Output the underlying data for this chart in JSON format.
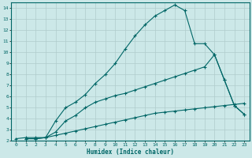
{
  "xlabel": "Humidex (Indice chaleur)",
  "bg_color": "#cce8e8",
  "grid_color": "#b0cccc",
  "line_color": "#006666",
  "xlim": [
    -0.5,
    23.5
  ],
  "ylim": [
    2,
    14.5
  ],
  "xticks": [
    0,
    1,
    2,
    3,
    4,
    5,
    6,
    7,
    8,
    9,
    10,
    11,
    12,
    13,
    14,
    15,
    16,
    17,
    18,
    19,
    20,
    21,
    22,
    23
  ],
  "yticks": [
    2,
    3,
    4,
    5,
    6,
    7,
    8,
    9,
    10,
    11,
    12,
    13,
    14
  ],
  "curve1_x": [
    0,
    1,
    2,
    3,
    4,
    5,
    6,
    7,
    8,
    9,
    10,
    11,
    12,
    13,
    14,
    15,
    16,
    17,
    18,
    19,
    20,
    21,
    22,
    23
  ],
  "curve1_y": [
    2.2,
    2.3,
    2.3,
    2.3,
    2.5,
    2.7,
    2.9,
    3.1,
    3.3,
    3.5,
    3.7,
    3.9,
    4.1,
    4.3,
    4.5,
    4.6,
    4.7,
    4.8,
    4.9,
    5.0,
    5.1,
    5.2,
    5.3,
    5.4
  ],
  "curve2_x": [
    1,
    2,
    3,
    4,
    5,
    6,
    7,
    8,
    9,
    10,
    11,
    12,
    13,
    14,
    15,
    16,
    17,
    18,
    19,
    20,
    21,
    22,
    23
  ],
  "curve2_y": [
    2.2,
    2.2,
    2.3,
    3.8,
    5.0,
    5.5,
    6.2,
    7.2,
    8.0,
    9.0,
    10.3,
    11.5,
    12.5,
    13.3,
    13.8,
    14.3,
    13.8,
    10.8,
    10.8,
    9.8,
    7.5,
    5.2,
    4.4
  ],
  "curve3_x": [
    1,
    2,
    3,
    4,
    5,
    6,
    7,
    8,
    9,
    10,
    11,
    12,
    13,
    14,
    15,
    16,
    17,
    18,
    19,
    20,
    21,
    22,
    23
  ],
  "curve3_y": [
    2.2,
    2.2,
    2.3,
    2.8,
    3.8,
    4.3,
    5.0,
    5.5,
    5.8,
    6.1,
    6.3,
    6.6,
    6.9,
    7.2,
    7.5,
    7.8,
    8.1,
    8.4,
    8.7,
    9.8,
    7.5,
    5.2,
    4.4
  ]
}
